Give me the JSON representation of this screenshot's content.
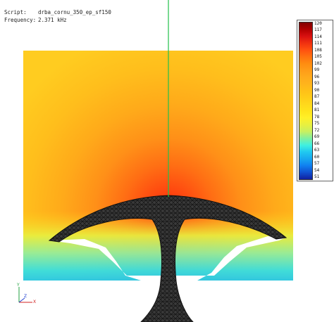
{
  "info": {
    "script_label": "Script:",
    "script_value": "drba_cornu_350_ep_sf150",
    "frequency_label": "Frequency:",
    "frequency_value": "2.371 kHz"
  },
  "colorbar": {
    "labels": [
      "120",
      "117",
      "114",
      "111",
      "108",
      "105",
      "102",
      "99",
      "96",
      "93",
      "90",
      "87",
      "84",
      "81",
      "78",
      "75",
      "72",
      "69",
      "66",
      "63",
      "60",
      "57",
      "54",
      "51"
    ],
    "stops": [
      "#800000",
      "#b00000",
      "#d81010",
      "#f03010",
      "#ff5010",
      "#ff7010",
      "#ff8c10",
      "#ff9c18",
      "#ffaa1c",
      "#ffb41c",
      "#ffc018",
      "#ffcc18",
      "#ffd81c",
      "#ffe41c",
      "#fff028",
      "#e8f040",
      "#c8f060",
      "#80f0a0",
      "#40f0e0",
      "#20c8f0",
      "#18a8f0",
      "#1080f0",
      "#1050d0",
      "#1020a0"
    ]
  },
  "axis": {
    "x_label": "X",
    "y_label": "Y",
    "z_label": "Z"
  },
  "colors": {
    "axis_line": "#22c04a",
    "mesh": "#2a2a2a"
  }
}
